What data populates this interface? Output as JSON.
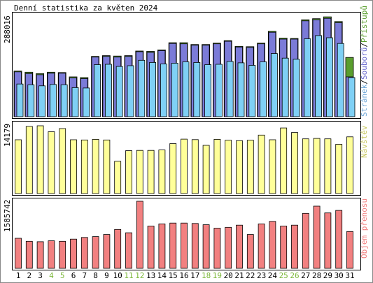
{
  "title": "Denní statistika za květen 2024",
  "colors": {
    "background": "#ffffff",
    "frame": "#000000",
    "pages": "#7b7bd8",
    "files": "#7fd0f5",
    "hits": "#5a9e2e",
    "visits": "#ffff99",
    "volume": "#f28080",
    "weekend_label": "#7cb83a",
    "label_pages": "#6fa7d8",
    "label_files": "#6b6bd0",
    "label_visits": "#c8c860",
    "label_volume": "#f28080"
  },
  "chart_data": [
    {
      "type": "bar",
      "name": "requests",
      "ymax_label": "288016",
      "ymax": 288016,
      "legend": {
        "pages": "Stránek",
        "files": "Souborů",
        "hits": "Přístupů",
        "sep": "/"
      },
      "days": [
        1,
        2,
        3,
        4,
        5,
        6,
        7,
        8,
        9,
        10,
        11,
        12,
        13,
        14,
        15,
        16,
        17,
        18,
        19,
        20,
        21,
        22,
        23,
        24,
        25,
        26,
        27,
        28,
        29,
        30,
        31
      ],
      "hits": [
        127000,
        124000,
        120000,
        124000,
        123000,
        111000,
        109000,
        168000,
        170000,
        169000,
        170000,
        183000,
        182000,
        186000,
        206000,
        206000,
        201000,
        201000,
        205000,
        212000,
        196000,
        195000,
        205000,
        238000,
        219000,
        218000,
        270000,
        273000,
        278000,
        265000,
        165000
      ],
      "pages": [
        125000,
        120000,
        117000,
        121000,
        121000,
        108000,
        106000,
        166000,
        168000,
        166000,
        168000,
        181000,
        179000,
        184000,
        204000,
        203000,
        199000,
        199000,
        203000,
        210000,
        194000,
        193000,
        203000,
        235000,
        216000,
        216000,
        267000,
        270000,
        274000,
        262000,
        111000
      ],
      "files": [
        91000,
        89000,
        86000,
        90000,
        89000,
        81000,
        80000,
        145000,
        146000,
        140000,
        142000,
        157000,
        151000,
        147000,
        149000,
        153000,
        151000,
        145000,
        146000,
        154000,
        150000,
        143000,
        153000,
        176000,
        163000,
        160000,
        217000,
        226000,
        220000,
        204000,
        109000
      ]
    },
    {
      "type": "bar",
      "name": "visits",
      "ymax_label": "14179",
      "ymax": 14179,
      "legend": "Návštěv",
      "days": [
        1,
        2,
        3,
        4,
        5,
        6,
        7,
        8,
        9,
        10,
        11,
        12,
        13,
        14,
        15,
        16,
        17,
        18,
        19,
        20,
        21,
        22,
        23,
        24,
        25,
        26,
        27,
        28,
        29,
        30,
        31
      ],
      "values": [
        11250,
        14050,
        14179,
        12930,
        13590,
        11250,
        11210,
        11350,
        11210,
        6750,
        8980,
        9030,
        9030,
        9120,
        10450,
        11390,
        11290,
        10080,
        11350,
        11170,
        11070,
        11170,
        12230,
        11260,
        13720,
        12780,
        11440,
        11530,
        11450,
        10300,
        11870
      ]
    },
    {
      "type": "bar",
      "name": "volume",
      "ymax_label": "1585742",
      "ymax": 1585742,
      "legend": "Objem přenosu",
      "days": [
        1,
        2,
        3,
        4,
        5,
        6,
        7,
        8,
        9,
        10,
        11,
        12,
        13,
        14,
        15,
        16,
        17,
        18,
        19,
        20,
        21,
        22,
        23,
        24,
        25,
        26,
        27,
        28,
        29,
        30,
        31
      ],
      "values": [
        710000,
        640000,
        630000,
        650000,
        640000,
        690000,
        730000,
        750000,
        800000,
        920000,
        840000,
        1585742,
        1000000,
        1050000,
        1070000,
        1070000,
        1060000,
        1030000,
        950000,
        970000,
        1020000,
        800000,
        1050000,
        1110000,
        1000000,
        1020000,
        1300000,
        1470000,
        1310000,
        1370000,
        870000
      ],
      "weekend_days": [
        4,
        5,
        11,
        12,
        18,
        19,
        25,
        26
      ]
    }
  ]
}
